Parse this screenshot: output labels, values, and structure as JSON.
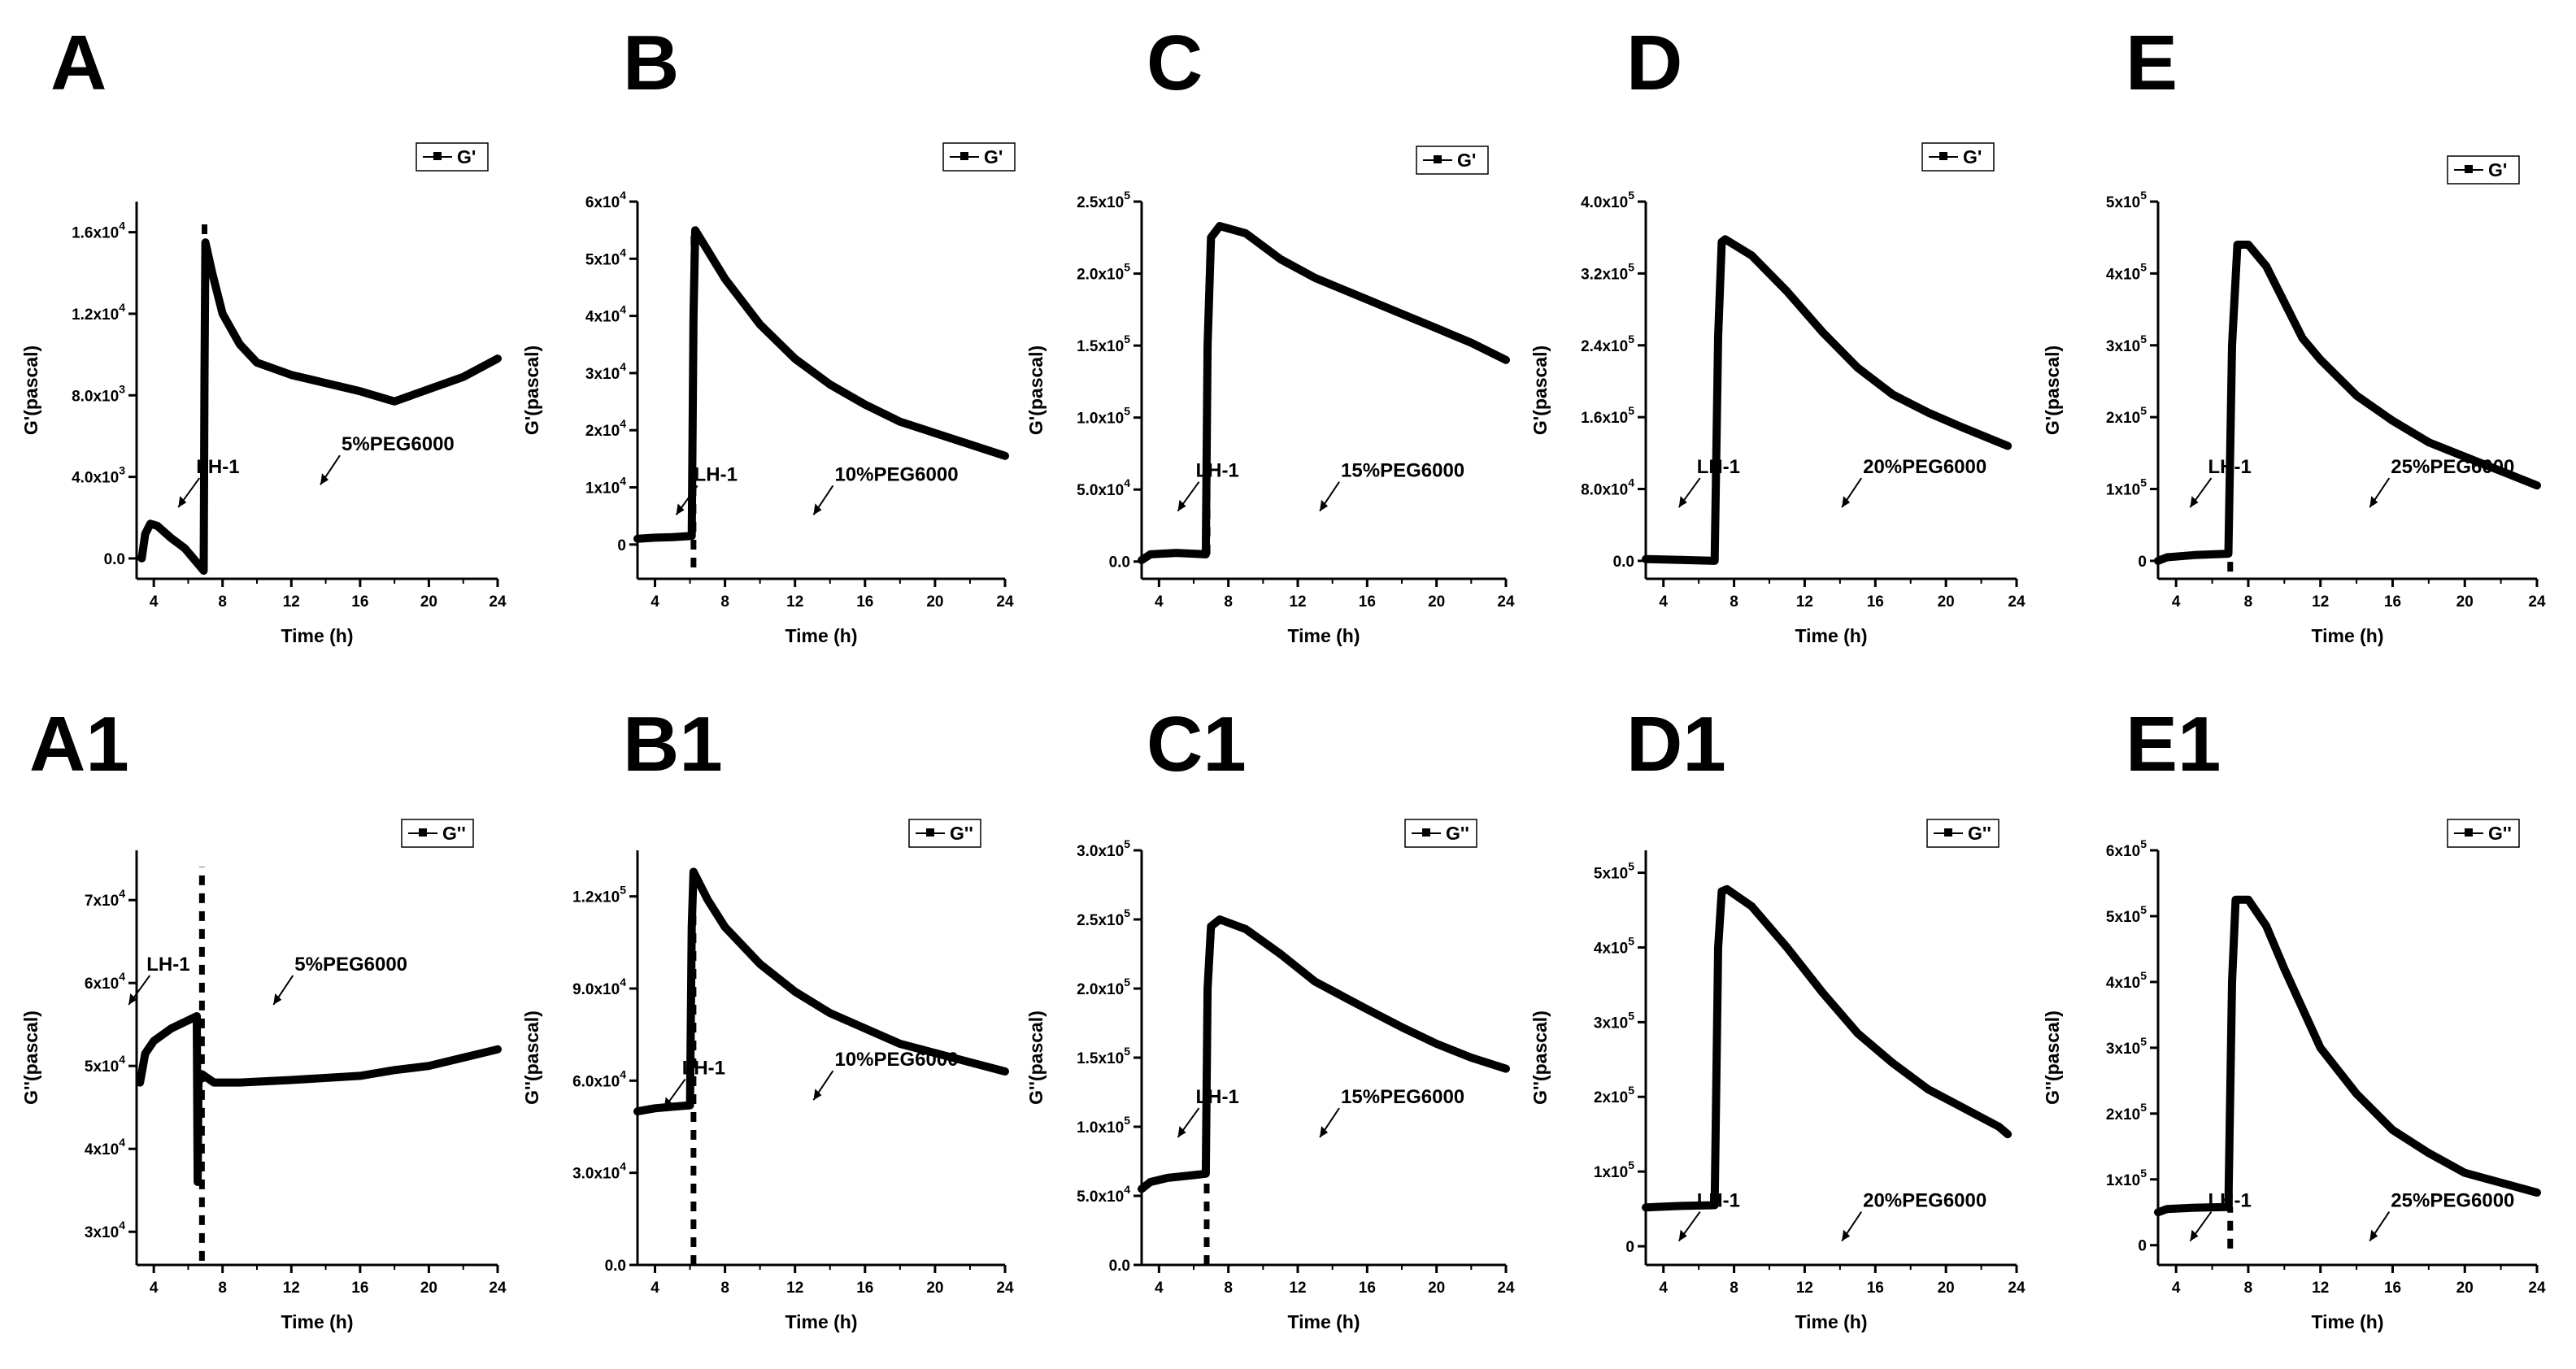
{
  "chart_data": [
    {
      "panel": "A",
      "type": "line",
      "title": "",
      "series": [
        {
          "name": "G'"
        }
      ],
      "xlabel": "Time (h)",
      "ylabel": "G'(pascal)",
      "xlim": [
        3,
        24
      ],
      "xticks": [
        4,
        8,
        12,
        16,
        20,
        24
      ],
      "ylim": [
        -1000,
        17500
      ],
      "yticks": [
        0,
        4000,
        8000,
        12000,
        16000
      ],
      "ytick_labels": [
        "0.0",
        "4.0x10",
        "8.0x10",
        "1.2x10",
        "1.6x10"
      ],
      "ytick_exps": [
        "",
        "3",
        "3",
        "4",
        "4"
      ],
      "annotations": [
        {
          "text": "LH-1"
        },
        {
          "text": "5%PEG6000"
        }
      ],
      "pts": [
        [
          3.3,
          0
        ],
        [
          3.5,
          1200
        ],
        [
          3.8,
          1700
        ],
        [
          4.2,
          1600
        ],
        [
          5,
          1000
        ],
        [
          5.8,
          500
        ],
        [
          6.5,
          -200
        ],
        [
          6.9,
          -600
        ],
        [
          6.95,
          9000
        ],
        [
          7,
          15500
        ],
        [
          7.4,
          14000
        ],
        [
          8,
          12000
        ],
        [
          9,
          10500
        ],
        [
          10,
          9600
        ],
        [
          12,
          9000
        ],
        [
          14,
          8600
        ],
        [
          16,
          8200
        ],
        [
          18,
          7700
        ],
        [
          20,
          8300
        ],
        [
          22,
          8900
        ],
        [
          24,
          9800
        ]
      ],
      "jump": {
        "x": 6.95,
        "y0": 4500,
        "y1": 16500
      }
    },
    {
      "panel": "B",
      "type": "line",
      "title": "",
      "series": [
        {
          "name": "G'"
        }
      ],
      "xlabel": "Time (h)",
      "ylabel": "G'(pascal)",
      "xlim": [
        3,
        24
      ],
      "xticks": [
        4,
        8,
        12,
        16,
        20,
        24
      ],
      "ylim": [
        -6000,
        60000
      ],
      "yticks": [
        0,
        10000,
        20000,
        30000,
        40000,
        50000,
        60000
      ],
      "ytick_labels": [
        "0",
        "1x10",
        "2x10",
        "3x10",
        "4x10",
        "5x10",
        "6x10"
      ],
      "ytick_exps": [
        "",
        "4",
        "4",
        "4",
        "4",
        "4",
        "4"
      ],
      "annotations": [
        {
          "text": "LH-1"
        },
        {
          "text": "10%PEG6000"
        }
      ],
      "pts": [
        [
          3,
          1000
        ],
        [
          4,
          1200
        ],
        [
          5,
          1300
        ],
        [
          6.1,
          1500
        ],
        [
          6.2,
          40000
        ],
        [
          6.3,
          55000
        ],
        [
          7,
          51500
        ],
        [
          8,
          46500
        ],
        [
          10,
          38500
        ],
        [
          12,
          32500
        ],
        [
          14,
          28000
        ],
        [
          16,
          24500
        ],
        [
          18,
          21500
        ],
        [
          20,
          19500
        ],
        [
          22,
          17500
        ],
        [
          24,
          15500
        ]
      ],
      "jump": {
        "x": 6.2,
        "y0": -4000,
        "y1": 55000
      }
    },
    {
      "panel": "C",
      "type": "line",
      "title": "",
      "series": [
        {
          "name": "G'"
        }
      ],
      "xlabel": "Time (h)",
      "ylabel": "G'(pascal)",
      "xlim": [
        3,
        24
      ],
      "xticks": [
        4,
        8,
        12,
        16,
        20,
        24
      ],
      "ylim": [
        -12000,
        250000
      ],
      "yticks": [
        0,
        50000,
        100000,
        150000,
        200000,
        250000
      ],
      "ytick_labels": [
        "0.0",
        "5.0x10",
        "1.0x10",
        "1.5x10",
        "2.0x10",
        "2.5x10"
      ],
      "ytick_exps": [
        "",
        "4",
        "5",
        "5",
        "5",
        "5"
      ],
      "annotations": [
        {
          "text": "LH-1"
        },
        {
          "text": "15%PEG6000"
        }
      ],
      "pts": [
        [
          3,
          1000
        ],
        [
          3.5,
          5000
        ],
        [
          5,
          6000
        ],
        [
          6.7,
          5000
        ],
        [
          6.8,
          150000
        ],
        [
          7,
          225000
        ],
        [
          7.5,
          233000
        ],
        [
          9,
          228000
        ],
        [
          11,
          210000
        ],
        [
          13,
          197000
        ],
        [
          16,
          182000
        ],
        [
          18,
          172000
        ],
        [
          20,
          162000
        ],
        [
          22,
          152000
        ],
        [
          24,
          140000
        ]
      ],
      "jump": {
        "x": 6.8,
        "y0": 5000,
        "y1": 100000
      }
    },
    {
      "panel": "D",
      "type": "line",
      "title": "",
      "series": [
        {
          "name": "G'"
        }
      ],
      "xlabel": "Time (h)",
      "ylabel": "G'(pascal)",
      "xlim": [
        3,
        24
      ],
      "xticks": [
        4,
        8,
        12,
        16,
        20,
        24
      ],
      "ylim": [
        -20000,
        400000
      ],
      "yticks": [
        0,
        80000,
        160000,
        240000,
        320000,
        400000
      ],
      "ytick_labels": [
        "0.0",
        "8.0x10",
        "1.6x10",
        "2.4x10",
        "3.2x10",
        "4.0x10"
      ],
      "ytick_exps": [
        "",
        "4",
        "5",
        "5",
        "5",
        "5"
      ],
      "annotations": [
        {
          "text": "LH-1"
        },
        {
          "text": "20%PEG6000"
        }
      ],
      "pts": [
        [
          3,
          2000
        ],
        [
          5,
          1000
        ],
        [
          6.9,
          0
        ],
        [
          7.1,
          250000
        ],
        [
          7.3,
          355000
        ],
        [
          7.5,
          358000
        ],
        [
          9,
          340000
        ],
        [
          11,
          300000
        ],
        [
          13,
          255000
        ],
        [
          15,
          215000
        ],
        [
          17,
          185000
        ],
        [
          19,
          165000
        ],
        [
          21,
          148000
        ],
        [
          23,
          132000
        ],
        [
          23.5,
          128000
        ]
      ],
      "jump": null
    },
    {
      "panel": "E",
      "type": "line",
      "title": "",
      "series": [
        {
          "name": "G'"
        }
      ],
      "xlabel": "Time (h)",
      "ylabel": "G'(pascal)",
      "xlim": [
        3,
        24
      ],
      "xticks": [
        4,
        8,
        12,
        16,
        20,
        24
      ],
      "ylim": [
        -25000,
        500000
      ],
      "yticks": [
        0,
        100000,
        200000,
        300000,
        400000,
        500000
      ],
      "ytick_labels": [
        "0",
        "1x10",
        "2x10",
        "3x10",
        "4x10",
        "5x10"
      ],
      "ytick_exps": [
        "",
        "5",
        "5",
        "5",
        "5",
        "5"
      ],
      "annotations": [
        {
          "text": "LH-1"
        },
        {
          "text": "25%PEG6000"
        }
      ],
      "pts": [
        [
          3,
          0
        ],
        [
          3.5,
          5000
        ],
        [
          5,
          8000
        ],
        [
          6.9,
          10000
        ],
        [
          7.1,
          300000
        ],
        [
          7.4,
          440000
        ],
        [
          8,
          440000
        ],
        [
          9,
          410000
        ],
        [
          10,
          360000
        ],
        [
          11,
          310000
        ],
        [
          12,
          280000
        ],
        [
          14,
          230000
        ],
        [
          16,
          195000
        ],
        [
          18,
          165000
        ],
        [
          20,
          145000
        ],
        [
          22,
          125000
        ],
        [
          24,
          105000
        ]
      ],
      "jump": {
        "x": 7.0,
        "y0": -15000,
        "y1": 10000
      }
    },
    {
      "panel": "A1",
      "type": "line",
      "title": "",
      "series": [
        {
          "name": "G''"
        }
      ],
      "xlabel": "Time (h)",
      "ylabel": "G''(pascal)",
      "xlim": [
        3,
        24
      ],
      "xticks": [
        4,
        8,
        12,
        16,
        20,
        24
      ],
      "ylim": [
        26000,
        76000
      ],
      "yticks": [
        30000,
        40000,
        50000,
        60000,
        70000
      ],
      "ytick_labels": [
        "3x10",
        "4x10",
        "5x10",
        "6x10",
        "7x10"
      ],
      "ytick_exps": [
        "4",
        "4",
        "4",
        "4",
        "4"
      ],
      "annotations": [
        {
          "text": "LH-1"
        },
        {
          "text": "5%PEG6000"
        }
      ],
      "pts": [
        [
          3.2,
          48000
        ],
        [
          3.5,
          51500
        ],
        [
          4,
          53000
        ],
        [
          5,
          54500
        ],
        [
          6,
          55500
        ],
        [
          6.5,
          56000
        ],
        [
          6.55,
          36000
        ],
        [
          6.6,
          48000
        ],
        [
          6.8,
          49000
        ],
        [
          7.5,
          48000
        ],
        [
          9,
          48000
        ],
        [
          12,
          48300
        ],
        [
          16,
          48800
        ],
        [
          18,
          49500
        ],
        [
          20,
          50000
        ],
        [
          22,
          51000
        ],
        [
          24,
          52000
        ]
      ],
      "jump": {
        "x": 6.8,
        "y0": 26500,
        "y1": 74000
      }
    },
    {
      "panel": "B1",
      "type": "line",
      "title": "",
      "series": [
        {
          "name": "G''"
        }
      ],
      "xlabel": "Time (h)",
      "ylabel": "G''(pascal)",
      "xlim": [
        3,
        24
      ],
      "xticks": [
        4,
        8,
        12,
        16,
        20,
        24
      ],
      "ylim": [
        0,
        135000
      ],
      "yticks": [
        0,
        30000,
        60000,
        90000,
        120000
      ],
      "ytick_labels": [
        "0.0",
        "3.0x10",
        "6.0x10",
        "9.0x10",
        "1.2x10"
      ],
      "ytick_exps": [
        "",
        "4",
        "4",
        "4",
        "5"
      ],
      "annotations": [
        {
          "text": "LH-1"
        },
        {
          "text": "10%PEG6000"
        }
      ],
      "pts": [
        [
          3,
          50000
        ],
        [
          4,
          51000
        ],
        [
          5,
          51500
        ],
        [
          6,
          52000
        ],
        [
          6.1,
          110000
        ],
        [
          6.2,
          128000
        ],
        [
          7,
          119000
        ],
        [
          8,
          110000
        ],
        [
          10,
          98000
        ],
        [
          12,
          89000
        ],
        [
          14,
          82000
        ],
        [
          16,
          77000
        ],
        [
          18,
          72000
        ],
        [
          20,
          69000
        ],
        [
          22,
          66000
        ],
        [
          24,
          63000
        ]
      ],
      "jump": {
        "x": 6.2,
        "y0": 0,
        "y1": 125000
      }
    },
    {
      "panel": "C1",
      "type": "line",
      "title": "",
      "series": [
        {
          "name": "G''"
        }
      ],
      "xlabel": "Time (h)",
      "ylabel": "G''(pascal)",
      "xlim": [
        3,
        24
      ],
      "xticks": [
        4,
        8,
        12,
        16,
        20,
        24
      ],
      "ylim": [
        0,
        300000
      ],
      "yticks": [
        0,
        50000,
        100000,
        150000,
        200000,
        250000,
        300000
      ],
      "ytick_labels": [
        "0.0",
        "5.0x10",
        "1.0x10",
        "1.5x10",
        "2.0x10",
        "2.5x10",
        "3.0x10"
      ],
      "ytick_exps": [
        "",
        "4",
        "5",
        "5",
        "5",
        "5",
        "5"
      ],
      "annotations": [
        {
          "text": "LH-1"
        },
        {
          "text": "15%PEG6000"
        }
      ],
      "pts": [
        [
          3,
          55000
        ],
        [
          3.5,
          60000
        ],
        [
          4.5,
          63000
        ],
        [
          6,
          65000
        ],
        [
          6.7,
          66000
        ],
        [
          6.8,
          200000
        ],
        [
          7,
          245000
        ],
        [
          7.5,
          250000
        ],
        [
          9,
          243000
        ],
        [
          11,
          225000
        ],
        [
          13,
          205000
        ],
        [
          16,
          185000
        ],
        [
          18,
          172000
        ],
        [
          20,
          160000
        ],
        [
          22,
          150000
        ],
        [
          24,
          142000
        ]
      ],
      "jump": {
        "x": 6.75,
        "y0": 0,
        "y1": 66000
      }
    },
    {
      "panel": "D1",
      "type": "line",
      "title": "",
      "series": [
        {
          "name": "G''"
        }
      ],
      "xlabel": "Time (h)",
      "ylabel": "G''(pascal)",
      "xlim": [
        3,
        24
      ],
      "xticks": [
        4,
        8,
        12,
        16,
        20,
        24
      ],
      "ylim": [
        -25000,
        530000
      ],
      "yticks": [
        0,
        100000,
        200000,
        300000,
        400000,
        500000
      ],
      "ytick_labels": [
        "0",
        "1x10",
        "2x10",
        "3x10",
        "4x10",
        "5x10"
      ],
      "ytick_exps": [
        "",
        "5",
        "5",
        "5",
        "5",
        "5"
      ],
      "annotations": [
        {
          "text": "LH-1"
        },
        {
          "text": "20%PEG6000"
        }
      ],
      "pts": [
        [
          3,
          52000
        ],
        [
          5,
          54000
        ],
        [
          6.9,
          55000
        ],
        [
          7.1,
          400000
        ],
        [
          7.3,
          475000
        ],
        [
          7.6,
          478000
        ],
        [
          9,
          455000
        ],
        [
          11,
          400000
        ],
        [
          13,
          340000
        ],
        [
          15,
          285000
        ],
        [
          17,
          245000
        ],
        [
          19,
          210000
        ],
        [
          21,
          185000
        ],
        [
          23,
          160000
        ],
        [
          23.5,
          150000
        ]
      ],
      "jump": null
    },
    {
      "panel": "E1",
      "type": "line",
      "title": "",
      "series": [
        {
          "name": "G''"
        }
      ],
      "xlabel": "Time (h)",
      "ylabel": "G''(pascal)",
      "xlim": [
        3,
        24
      ],
      "xticks": [
        4,
        8,
        12,
        16,
        20,
        24
      ],
      "ylim": [
        -30000,
        600000
      ],
      "yticks": [
        0,
        100000,
        200000,
        300000,
        400000,
        500000,
        600000
      ],
      "ytick_labels": [
        "0",
        "1x10",
        "2x10",
        "3x10",
        "4x10",
        "5x10",
        "6x10"
      ],
      "ytick_exps": [
        "",
        "5",
        "5",
        "5",
        "5",
        "5",
        "5"
      ],
      "annotations": [
        {
          "text": "LH-1"
        },
        {
          "text": "25%PEG6000"
        }
      ],
      "pts": [
        [
          3,
          50000
        ],
        [
          3.5,
          55000
        ],
        [
          5,
          57000
        ],
        [
          6.9,
          58000
        ],
        [
          7.1,
          400000
        ],
        [
          7.3,
          525000
        ],
        [
          8,
          525000
        ],
        [
          9,
          485000
        ],
        [
          10,
          420000
        ],
        [
          11,
          360000
        ],
        [
          12,
          300000
        ],
        [
          14,
          230000
        ],
        [
          16,
          175000
        ],
        [
          18,
          140000
        ],
        [
          20,
          110000
        ],
        [
          22,
          95000
        ],
        [
          24,
          80000
        ]
      ],
      "jump": {
        "x": 7.0,
        "y0": -5000,
        "y1": 58000
      }
    }
  ]
}
